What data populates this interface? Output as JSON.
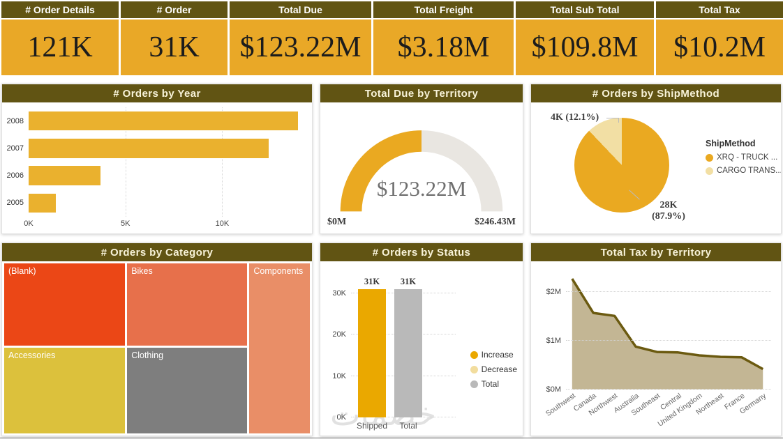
{
  "kpis": [
    {
      "label": "# Order Details",
      "value": "121K"
    },
    {
      "label": "# Order",
      "value": "31K"
    },
    {
      "label": "Total Due",
      "value": "$123.22M"
    },
    {
      "label": "Total Freight",
      "value": "$3.18M"
    },
    {
      "label": "Total Sub Total",
      "value": "$109.8M"
    },
    {
      "label": "Total Tax",
      "value": "$10.2M"
    }
  ],
  "theme": {
    "header_bg": "#615413",
    "header_text": "#F8F3D9",
    "kpi_bg": "#E9A827",
    "gold": "#EAA921",
    "cream": "#F2DFA4",
    "gray": "#B9B9B9"
  },
  "chart_data": [
    {
      "type": "bar",
      "orientation": "horizontal",
      "title": "# Orders by Year",
      "categories": [
        "2008",
        "2007",
        "2006",
        "2005"
      ],
      "values": [
        13900,
        12400,
        3700,
        1400
      ],
      "xlim": [
        0,
        14200
      ],
      "xticks": [
        {
          "label": "0K",
          "value": 0
        },
        {
          "label": "5K",
          "value": 5000
        },
        {
          "label": "10K",
          "value": 10000
        }
      ],
      "bar_color": "#EAB12E",
      "grid": true,
      "legend": "none"
    },
    {
      "type": "gauge",
      "title": "Total Due by Territory",
      "value": 123.22,
      "min": 0,
      "max": 246.43,
      "value_label": "$123.22M",
      "min_label": "$0M",
      "max_label": "$246.43M",
      "fill_color": "#EAA921",
      "track_color": "#E9E6E1"
    },
    {
      "type": "pie",
      "title": "# Orders by ShipMethod",
      "legend_title": "ShipMethod",
      "legend_position": "right",
      "slices": [
        {
          "name": "XRQ - TRUCK ...",
          "value": 28000,
          "pct": 87.9,
          "callout_line1": "28K",
          "callout_line2": "(87.9%)",
          "color": "#EAA921"
        },
        {
          "name": "CARGO TRANS...",
          "value": 4000,
          "pct": 12.1,
          "callout_line1": "4K (12.1%)",
          "callout_line2": "",
          "color": "#F2DFA4"
        }
      ]
    },
    {
      "type": "treemap",
      "title": "# Orders by Category",
      "tiles": [
        {
          "name": "(Blank)",
          "color": "#EB4716"
        },
        {
          "name": "Bikes",
          "color": "#E7704B"
        },
        {
          "name": "Components",
          "color": "#E98E67"
        },
        {
          "name": "Accessories",
          "color": "#DCC13C"
        },
        {
          "name": "Clothing",
          "color": "#7E7E7E"
        }
      ]
    },
    {
      "type": "waterfall",
      "title": "# Orders by Status",
      "categories": [
        "Shipped",
        "Total"
      ],
      "values": [
        31000,
        31000
      ],
      "bar_labels": [
        "31K",
        "31K"
      ],
      "bar_colors": [
        "#EAA800",
        "#B9B9B9"
      ],
      "ylim": [
        0,
        33000
      ],
      "yticks": [
        {
          "label": "0K",
          "value": 0
        },
        {
          "label": "10K",
          "value": 10000
        },
        {
          "label": "20K",
          "value": 20000
        },
        {
          "label": "30K",
          "value": 30000
        }
      ],
      "legend": [
        {
          "label": "Increase",
          "color": "#EAA800"
        },
        {
          "label": "Decrease",
          "color": "#F2DD9E"
        },
        {
          "label": "Total",
          "color": "#B9B9B9"
        }
      ],
      "watermark": "خصمات",
      "grid": true
    },
    {
      "type": "area",
      "title": "Total Tax by Territory",
      "categories": [
        "Southwest",
        "Canada",
        "Northwest",
        "Australia",
        "Southeast",
        "Central",
        "United Kingdom",
        "Northeast",
        "France",
        "Germany"
      ],
      "values": [
        2.27,
        1.57,
        1.51,
        0.88,
        0.77,
        0.76,
        0.7,
        0.67,
        0.66,
        0.42
      ],
      "ylim": [
        0,
        2.4
      ],
      "yticks": [
        {
          "label": "$0M",
          "value": 0
        },
        {
          "label": "$1M",
          "value": 1
        },
        {
          "label": "$2M",
          "value": 2
        }
      ],
      "fill_color": "#C3B694",
      "line_color": "#6B5A10",
      "grid": true
    }
  ]
}
